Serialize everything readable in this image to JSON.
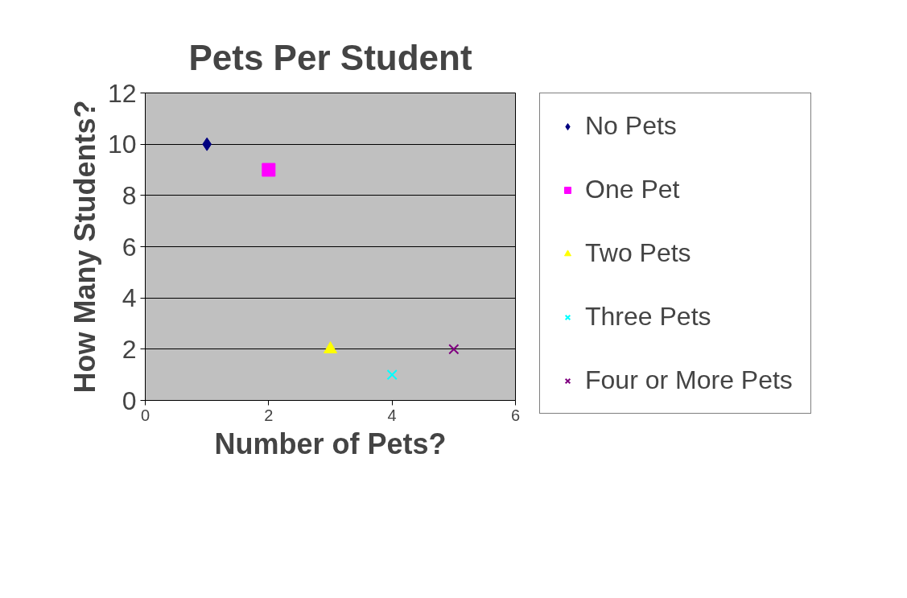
{
  "chart_data": {
    "type": "scatter",
    "title": "Pets Per Student",
    "xlabel": "Number of Pets?",
    "ylabel": "How Many Students?",
    "xlim": [
      0,
      6
    ],
    "xticks": [
      0,
      2,
      4,
      6
    ],
    "ylim": [
      0,
      12
    ],
    "yticks": [
      0,
      2,
      4,
      6,
      8,
      10,
      12
    ],
    "grid": "y",
    "legend": "right",
    "series": [
      {
        "name": "No Pets",
        "color": "#000080",
        "marker": "diamond",
        "x": [
          1
        ],
        "values": [
          10
        ]
      },
      {
        "name": "One Pet",
        "color": "#ff00ff",
        "marker": "square",
        "x": [
          2
        ],
        "values": [
          9
        ]
      },
      {
        "name": "Two Pets",
        "color": "#ffff00",
        "marker": "triangle",
        "x": [
          3
        ],
        "values": [
          2
        ]
      },
      {
        "name": "Three Pets",
        "color": "#00ffff",
        "marker": "cross",
        "x": [
          4
        ],
        "values": [
          1
        ]
      },
      {
        "name": "Four or More Pets",
        "color": "#800080",
        "marker": "cross",
        "x": [
          5
        ],
        "values": [
          2
        ]
      }
    ]
  }
}
